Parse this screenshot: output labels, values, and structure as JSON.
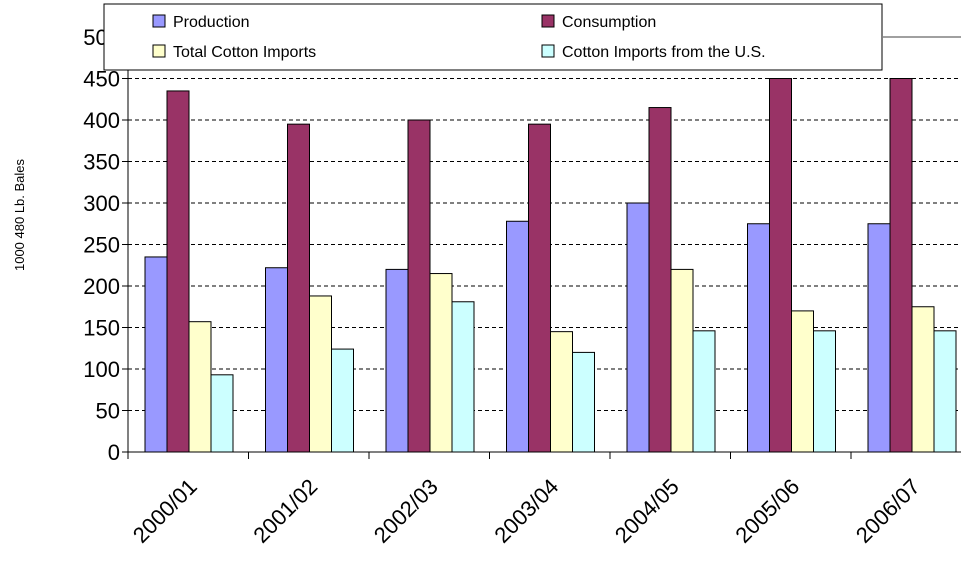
{
  "chart_data": {
    "type": "bar",
    "title": "",
    "xlabel": "",
    "ylabel": "1000 480 Lb. Bales",
    "ylim": [
      0,
      500
    ],
    "yticks": [
      0,
      50,
      100,
      150,
      200,
      250,
      300,
      350,
      400,
      450,
      500
    ],
    "grid": "horizontal-dashed",
    "legend_placement": "top",
    "categories": [
      "2000/01",
      "2001/02",
      "2002/03",
      "2003/04",
      "2004/05",
      "2005/06",
      "2006/07"
    ],
    "series": [
      {
        "name": "Production",
        "color": "#9999FF",
        "values": [
          235,
          222,
          220,
          278,
          300,
          275,
          275
        ]
      },
      {
        "name": "Consumption",
        "color": "#993366",
        "values": [
          435,
          395,
          400,
          395,
          415,
          450,
          450
        ]
      },
      {
        "name": "Total Cotton Imports",
        "color": "#FFFFCC",
        "values": [
          157,
          188,
          215,
          145,
          220,
          170,
          175
        ]
      },
      {
        "name": "Cotton Imports from the U.S.",
        "color": "#CCFFFF",
        "values": [
          93,
          124,
          181,
          120,
          146,
          146,
          146
        ]
      }
    ]
  }
}
